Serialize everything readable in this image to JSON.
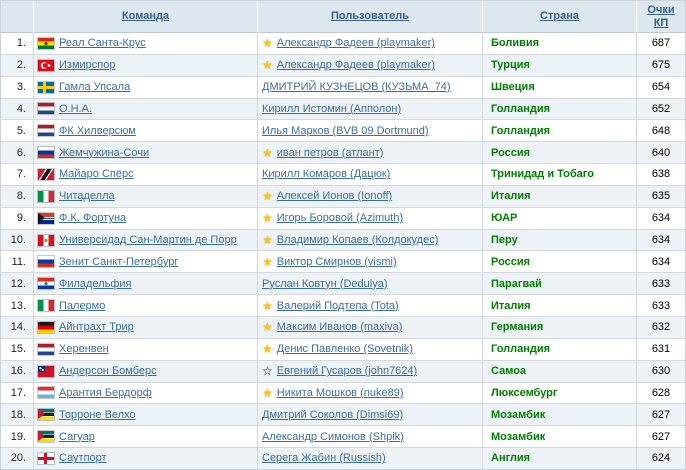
{
  "colors": {
    "header_bg": "#dde7f0",
    "header_link": "#39618f",
    "link": "#3a6da5",
    "country_green": "#008000",
    "alt_row": "#edf2f7",
    "border_light": "#d2d8de",
    "gold_star": "#ffc40d"
  },
  "header": {
    "rank_label": "",
    "columns": [
      {
        "label": "Команда"
      },
      {
        "label": "Пользователь"
      },
      {
        "label": "Страна"
      },
      {
        "label": "Очки КП"
      }
    ]
  },
  "icons": {
    "gold_star": "star-icon",
    "silver_star": "star-outline-icon"
  },
  "rows": [
    {
      "rank": "1.",
      "flag": "bolivia",
      "team": "Реал Санта-Крус",
      "star": "gold",
      "user": "Александр Фадеев (playmaker)",
      "country": "Боливия",
      "points": "687"
    },
    {
      "rank": "2.",
      "flag": "turkey",
      "team": "Измирспор",
      "star": "gold",
      "user": "Александр Фадеев (playmaker)",
      "country": "Турция",
      "points": "675"
    },
    {
      "rank": "3.",
      "flag": "sweden",
      "team": "Гамла Упсала",
      "star": "none",
      "user": "ДМИТРИЙ КУЗНЕЦОВ (КУЗЬМА_74)",
      "country": "Швеция",
      "points": "654"
    },
    {
      "rank": "4.",
      "flag": "netherlands",
      "team": "О.Н.А.",
      "star": "none",
      "user": "Кирилл Истомин (Апполон)",
      "country": "Голландия",
      "points": "652"
    },
    {
      "rank": "5.",
      "flag": "netherlands",
      "team": "ФК Хилверсюм",
      "star": "none",
      "user": "Илья Марков (BVB 09 Dortmund)",
      "country": "Голландия",
      "points": "648"
    },
    {
      "rank": "6.",
      "flag": "russia",
      "team": "Жемчужина-Сочи",
      "star": "gold",
      "user": "иван петров (атлант)",
      "country": "Россия",
      "points": "640"
    },
    {
      "rank": "7.",
      "flag": "trinidad",
      "team": "Майаро Спёрс",
      "star": "none",
      "user": "Кирилл Комаров (Дацюк)",
      "country": "Тринидад и Тобаго",
      "points": "638"
    },
    {
      "rank": "8.",
      "flag": "italy",
      "team": "Читаделла",
      "star": "gold",
      "user": "Алексей Ионов (Ionoff)",
      "country": "Италия",
      "points": "635"
    },
    {
      "rank": "9.",
      "flag": "southafrica",
      "team": "Ф.К. Фортуна",
      "star": "gold",
      "user": "Игорь Боровой (Azimuth)",
      "country": "ЮАР",
      "points": "634"
    },
    {
      "rank": "10.",
      "flag": "peru",
      "team": "Универсидад Сан-Мартин де Порр",
      "star": "gold",
      "user": "Владимир Копаев (Колдокудес)",
      "country": "Перу",
      "points": "634"
    },
    {
      "rank": "11.",
      "flag": "russia",
      "team": "Зенит Санкт-Петербург",
      "star": "gold",
      "user": "Виктор Смирнов (vismi)",
      "country": "Россия",
      "points": "634"
    },
    {
      "rank": "12.",
      "flag": "paraguay",
      "team": "Филадельфия",
      "star": "none",
      "user": "Руслан Ковтун (Dedulya)",
      "country": "Парагвай",
      "points": "633"
    },
    {
      "rank": "13.",
      "flag": "italy",
      "team": "Палермо",
      "star": "gold",
      "user": "Валерий Подтепа (Tota)",
      "country": "Италия",
      "points": "633"
    },
    {
      "rank": "14.",
      "flag": "germany",
      "team": "Айнтрахт Трир",
      "star": "gold",
      "user": "Максим Иванов (maxiva)",
      "country": "Германия",
      "points": "632"
    },
    {
      "rank": "15.",
      "flag": "netherlands",
      "team": "Херенвен",
      "star": "gold",
      "user": "Денис Павленко (Sovetnik)",
      "country": "Голландия",
      "points": "631"
    },
    {
      "rank": "16.",
      "flag": "samoa",
      "team": "Андерсон Бомберс",
      "star": "silver",
      "user": "Евгений Гусаров (john7624)",
      "country": "Самоа",
      "points": "630"
    },
    {
      "rank": "17.",
      "flag": "luxembourg",
      "team": "Арантия Бердорф",
      "star": "gold",
      "user": "Никита Мошков (nuke89)",
      "country": "Люксембург",
      "points": "628"
    },
    {
      "rank": "18.",
      "flag": "mozambique",
      "team": "Торроне Велхо",
      "star": "none",
      "user": "Дмитрий Соколов (Dimsi69)",
      "country": "Мозамбик",
      "points": "627"
    },
    {
      "rank": "19.",
      "flag": "mozambique",
      "team": "Сагуар",
      "star": "none",
      "user": "Александр Симонов (Shpik)",
      "country": "Мозамбик",
      "points": "627"
    },
    {
      "rank": "20.",
      "flag": "england",
      "team": "Саутпорт",
      "star": "none",
      "user": "Серега Жабин (Russish)",
      "country": "Англия",
      "points": "624"
    }
  ]
}
